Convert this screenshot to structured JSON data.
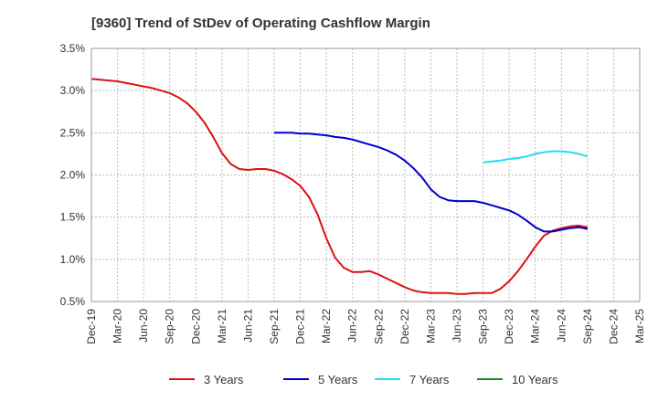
{
  "chart_data": {
    "type": "line",
    "title": "[9360]  Trend of StDev of Operating Cashflow Margin",
    "xlabel": "",
    "ylabel": "",
    "ylim": [
      0.5,
      3.5
    ],
    "y_ticks": [
      "0.5%",
      "1.0%",
      "1.5%",
      "2.0%",
      "2.5%",
      "3.0%",
      "3.5%"
    ],
    "y_tick_values": [
      0.5,
      1.0,
      1.5,
      2.0,
      2.5,
      3.0,
      3.5
    ],
    "x_ticks": [
      "Dec-19",
      "Mar-20",
      "Jun-20",
      "Sep-20",
      "Dec-20",
      "Mar-21",
      "Jun-21",
      "Sep-21",
      "Dec-21",
      "Mar-22",
      "Jun-22",
      "Sep-22",
      "Dec-22",
      "Mar-23",
      "Jun-23",
      "Sep-23",
      "Dec-23",
      "Mar-24",
      "Jun-24",
      "Sep-24",
      "Dec-24",
      "Mar-25"
    ],
    "grid": true,
    "legend_position": "bottom",
    "series": [
      {
        "name": "3 Years",
        "color": "#dd1111",
        "x": [
          "2019-12",
          "2020-01",
          "2020-02",
          "2020-03",
          "2020-04",
          "2020-05",
          "2020-06",
          "2020-07",
          "2020-08",
          "2020-09",
          "2020-10",
          "2020-11",
          "2020-12",
          "2021-01",
          "2021-02",
          "2021-03",
          "2021-04",
          "2021-05",
          "2021-06",
          "2021-07",
          "2021-08",
          "2021-09",
          "2021-10",
          "2021-11",
          "2021-12",
          "2022-01",
          "2022-02",
          "2022-03",
          "2022-04",
          "2022-05",
          "2022-06",
          "2022-07",
          "2022-08",
          "2022-09",
          "2022-10",
          "2022-11",
          "2022-12",
          "2023-01",
          "2023-02",
          "2023-03",
          "2023-04",
          "2023-05",
          "2023-06",
          "2023-07",
          "2023-08",
          "2023-09",
          "2023-10",
          "2023-11",
          "2023-12",
          "2024-01",
          "2024-02",
          "2024-03",
          "2024-04",
          "2024-05",
          "2024-06",
          "2024-07",
          "2024-08",
          "2024-09"
        ],
        "values": [
          3.14,
          3.13,
          3.12,
          3.11,
          3.09,
          3.07,
          3.05,
          3.03,
          3.0,
          2.97,
          2.92,
          2.85,
          2.75,
          2.62,
          2.45,
          2.26,
          2.13,
          2.07,
          2.06,
          2.07,
          2.07,
          2.05,
          2.01,
          1.95,
          1.87,
          1.74,
          1.53,
          1.25,
          1.02,
          0.9,
          0.85,
          0.85,
          0.86,
          0.82,
          0.77,
          0.72,
          0.67,
          0.63,
          0.61,
          0.6,
          0.6,
          0.6,
          0.59,
          0.59,
          0.6,
          0.6,
          0.6,
          0.65,
          0.74,
          0.86,
          1.0,
          1.15,
          1.28,
          1.34,
          1.37,
          1.39,
          1.4,
          1.38
        ]
      },
      {
        "name": "5 Years",
        "color": "#0000cc",
        "x": [
          "2021-09",
          "2021-10",
          "2021-11",
          "2021-12",
          "2022-01",
          "2022-02",
          "2022-03",
          "2022-04",
          "2022-05",
          "2022-06",
          "2022-07",
          "2022-08",
          "2022-09",
          "2022-10",
          "2022-11",
          "2022-12",
          "2023-01",
          "2023-02",
          "2023-03",
          "2023-04",
          "2023-05",
          "2023-06",
          "2023-07",
          "2023-08",
          "2023-09",
          "2023-10",
          "2023-11",
          "2023-12",
          "2024-01",
          "2024-02",
          "2024-03",
          "2024-04",
          "2024-05",
          "2024-06",
          "2024-07",
          "2024-08",
          "2024-09"
        ],
        "values": [
          2.5,
          2.5,
          2.5,
          2.49,
          2.49,
          2.48,
          2.47,
          2.45,
          2.44,
          2.42,
          2.39,
          2.36,
          2.33,
          2.29,
          2.24,
          2.17,
          2.08,
          1.97,
          1.83,
          1.74,
          1.7,
          1.69,
          1.69,
          1.69,
          1.67,
          1.64,
          1.61,
          1.58,
          1.53,
          1.46,
          1.38,
          1.33,
          1.33,
          1.35,
          1.37,
          1.38,
          1.36
        ]
      },
      {
        "name": "7 Years",
        "color": "#22ddee",
        "x": [
          "2023-09",
          "2023-10",
          "2023-11",
          "2023-12",
          "2024-01",
          "2024-02",
          "2024-03",
          "2024-04",
          "2024-05",
          "2024-06",
          "2024-07",
          "2024-08",
          "2024-09"
        ],
        "values": [
          2.15,
          2.16,
          2.17,
          2.19,
          2.2,
          2.22,
          2.25,
          2.27,
          2.28,
          2.28,
          2.27,
          2.25,
          2.22
        ]
      },
      {
        "name": "10 Years",
        "color": "#228822",
        "x": [],
        "values": []
      }
    ]
  }
}
